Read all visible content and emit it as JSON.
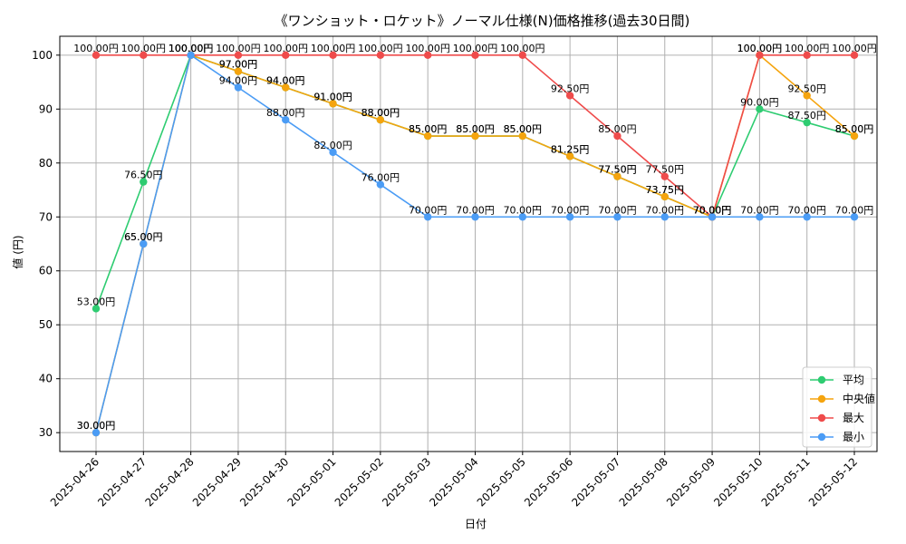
{
  "chart_data": {
    "type": "line",
    "title": "《ワンショット・ロケット》ノーマル仕様(N)価格推移(過去30日間)",
    "xlabel": "日付",
    "ylabel": "値 (円)",
    "ylim": [
      26.5,
      103.5
    ],
    "yticks": [
      30,
      40,
      50,
      60,
      70,
      80,
      90,
      100
    ],
    "grid": true,
    "legend_position": "bottom-right",
    "value_suffix": "円",
    "categories": [
      "2025-04-26",
      "2025-04-27",
      "2025-04-28",
      "2025-04-29",
      "2025-04-30",
      "2025-05-01",
      "2025-05-02",
      "2025-05-03",
      "2025-05-04",
      "2025-05-05",
      "2025-05-06",
      "2025-05-07",
      "2025-05-08",
      "2025-05-09",
      "2025-05-10",
      "2025-05-11",
      "2025-05-12"
    ],
    "series": [
      {
        "name": "平均",
        "color": "#2ecc71",
        "values": [
          53.0,
          76.5,
          100.0,
          97.0,
          94.0,
          91.0,
          88.0,
          85.0,
          85.0,
          85.0,
          81.25,
          77.5,
          73.75,
          70.0,
          90.0,
          87.5,
          85.0
        ]
      },
      {
        "name": "中央値",
        "color": "#f5a40e",
        "values": [
          30.0,
          65.0,
          100.0,
          97.0,
          94.0,
          91.0,
          88.0,
          85.0,
          85.0,
          85.0,
          81.25,
          77.5,
          73.75,
          70.0,
          100.0,
          92.5,
          85.0
        ]
      },
      {
        "name": "最大",
        "color": "#ef4b4b",
        "values": [
          100.0,
          100.0,
          100.0,
          100.0,
          100.0,
          100.0,
          100.0,
          100.0,
          100.0,
          100.0,
          92.5,
          85.0,
          77.5,
          70.0,
          100.0,
          100.0,
          100.0
        ]
      },
      {
        "name": "最小",
        "color": "#4b9cf5",
        "values": [
          30.0,
          65.0,
          100.0,
          94.0,
          88.0,
          82.0,
          76.0,
          70.0,
          70.0,
          70.0,
          70.0,
          70.0,
          70.0,
          70.0,
          70.0,
          70.0,
          70.0
        ]
      }
    ]
  }
}
